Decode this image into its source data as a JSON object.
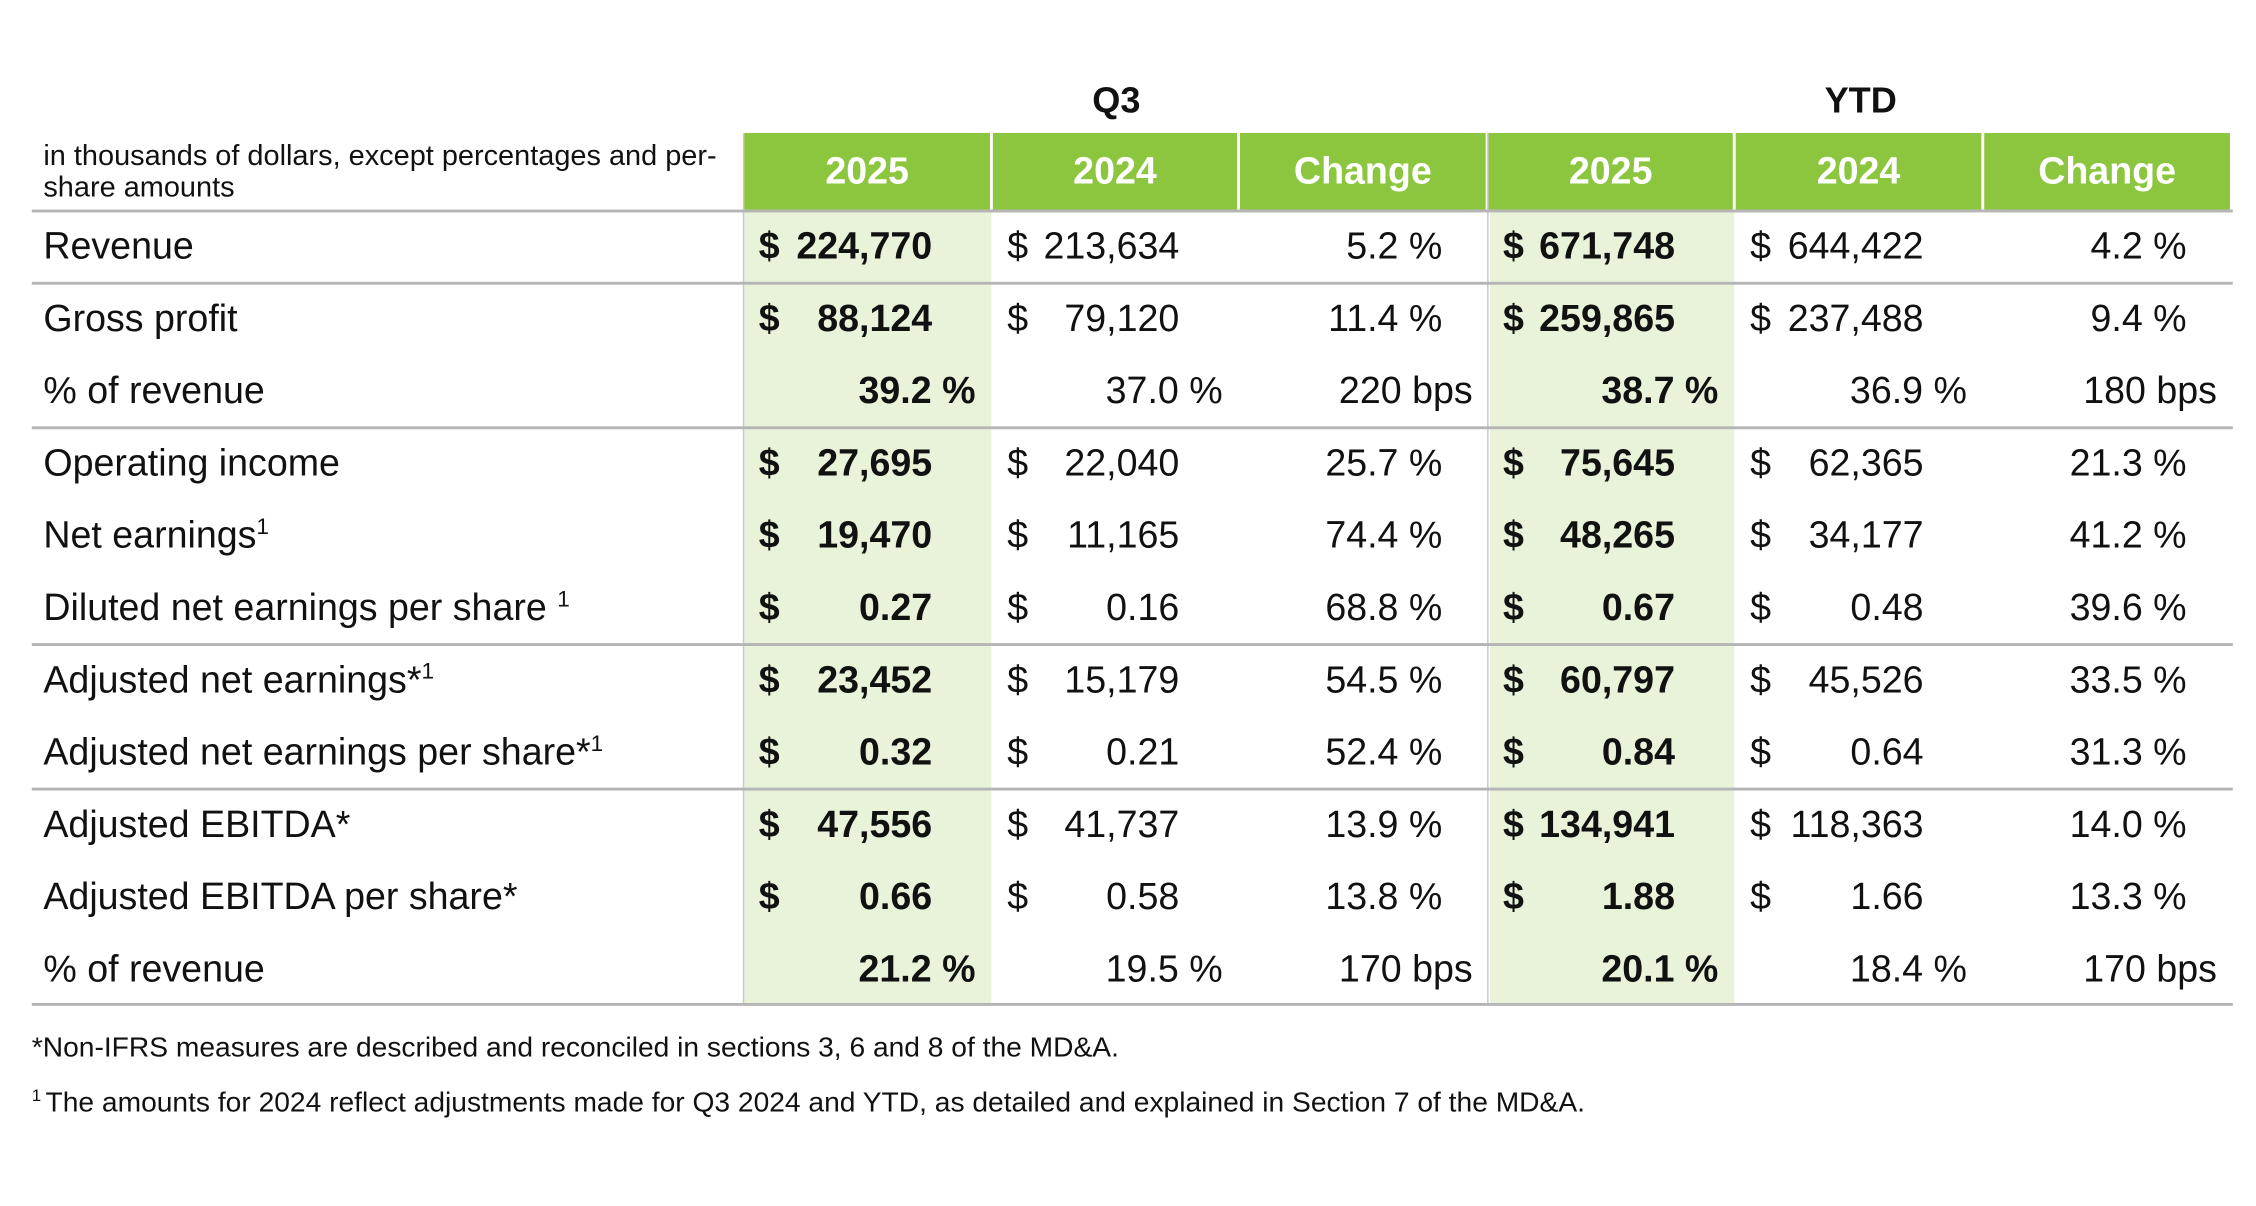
{
  "header": {
    "units_note": "in thousands of dollars, except percentages and per-share amounts",
    "groups": [
      "Q3",
      "YTD"
    ],
    "columns": [
      "2025",
      "2024",
      "Change",
      "2025",
      "2024",
      "Change"
    ]
  },
  "rows": [
    {
      "label": "Revenue",
      "cells": [
        {
          "currency": "$",
          "amount": "224,770"
        },
        {
          "currency": "$",
          "amount": "213,634"
        },
        "5.2 %",
        {
          "currency": "$",
          "amount": "671,748"
        },
        {
          "currency": "$",
          "amount": "644,422"
        },
        "4.2 %"
      ]
    },
    {
      "label": "Gross profit",
      "cells": [
        {
          "currency": "$",
          "amount": "88,124"
        },
        {
          "currency": "$",
          "amount": "79,120"
        },
        "11.4 %",
        {
          "currency": "$",
          "amount": "259,865"
        },
        {
          "currency": "$",
          "amount": "237,488"
        },
        "9.4 %"
      ]
    },
    {
      "label": "% of revenue",
      "cells": [
        "39.2 %",
        "37.0 %",
        "220 bps",
        "38.7 %",
        "36.9 %",
        "180 bps"
      ]
    },
    {
      "label": "Operating income",
      "cells": [
        {
          "currency": "$",
          "amount": "27,695"
        },
        {
          "currency": "$",
          "amount": "22,040"
        },
        "25.7 %",
        {
          "currency": "$",
          "amount": "75,645"
        },
        {
          "currency": "$",
          "amount": "62,365"
        },
        "21.3 %"
      ]
    },
    {
      "label": "Net earnings",
      "note": "1",
      "cells": [
        {
          "currency": "$",
          "amount": "19,470"
        },
        {
          "currency": "$",
          "amount": "11,165"
        },
        "74.4 %",
        {
          "currency": "$",
          "amount": "48,265"
        },
        {
          "currency": "$",
          "amount": "34,177"
        },
        "41.2 %"
      ]
    },
    {
      "label": "Diluted net earnings per share ",
      "note": "1",
      "cells": [
        {
          "currency": "$",
          "amount": "0.27"
        },
        {
          "currency": "$",
          "amount": "0.16"
        },
        "68.8 %",
        {
          "currency": "$",
          "amount": "0.67"
        },
        {
          "currency": "$",
          "amount": "0.48"
        },
        "39.6 %"
      ]
    },
    {
      "label": "Adjusted net earnings*",
      "note": "1",
      "cells": [
        {
          "currency": "$",
          "amount": "23,452"
        },
        {
          "currency": "$",
          "amount": "15,179"
        },
        "54.5 %",
        {
          "currency": "$",
          "amount": "60,797"
        },
        {
          "currency": "$",
          "amount": "45,526"
        },
        "33.5 %"
      ]
    },
    {
      "label": "Adjusted net earnings per share*",
      "note": "1",
      "cells": [
        {
          "currency": "$",
          "amount": "0.32"
        },
        {
          "currency": "$",
          "amount": "0.21"
        },
        "52.4 %",
        {
          "currency": "$",
          "amount": "0.84"
        },
        {
          "currency": "$",
          "amount": "0.64"
        },
        "31.3 %"
      ]
    },
    {
      "label": "Adjusted EBITDA*",
      "cells": [
        {
          "currency": "$",
          "amount": "47,556"
        },
        {
          "currency": "$",
          "amount": "41,737"
        },
        "13.9 %",
        {
          "currency": "$",
          "amount": "134,941"
        },
        {
          "currency": "$",
          "amount": "118,363"
        },
        "14.0 %"
      ]
    },
    {
      "label": "Adjusted EBITDA per share*",
      "cells": [
        {
          "currency": "$",
          "amount": "0.66"
        },
        {
          "currency": "$",
          "amount": "0.58"
        },
        "13.8 %",
        {
          "currency": "$",
          "amount": "1.88"
        },
        {
          "currency": "$",
          "amount": "1.66"
        },
        "13.3 %"
      ]
    },
    {
      "label": "% of revenue",
      "cells": [
        "21.2 %",
        "19.5 %",
        "170 bps",
        "20.1 %",
        "18.4 %",
        "170 bps"
      ]
    }
  ],
  "footnotes": [
    {
      "text": "*Non-IFRS measures are described and reconciled in sections 3, 6 and 8 of the MD&A."
    },
    {
      "marker": "1",
      "text": "The amounts for 2024 reflect adjustments made for Q3 2024 and YTD, as detailed and explained in Section 7 of the MD&A."
    }
  ]
}
